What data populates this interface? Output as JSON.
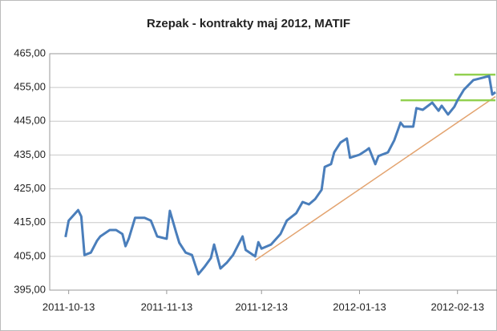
{
  "chart_data": {
    "type": "line",
    "title": "Rzepak - kontrakty maj 2012, MATIF",
    "x": [
      "2011-10-12",
      "2011-10-13",
      "2011-10-16",
      "2011-10-17",
      "2011-10-18",
      "2011-10-20",
      "2011-10-22",
      "2011-10-23",
      "2011-10-26",
      "2011-10-28",
      "2011-10-30",
      "2011-10-31",
      "2011-11-01",
      "2011-11-03",
      "2011-11-06",
      "2011-11-08",
      "2011-11-10",
      "2011-11-13",
      "2011-11-14",
      "2011-11-16",
      "2011-11-17",
      "2011-11-19",
      "2011-11-21",
      "2011-11-23",
      "2011-11-25",
      "2011-11-27",
      "2011-11-28",
      "2011-11-30",
      "2011-12-02",
      "2011-12-04",
      "2011-12-07",
      "2011-12-08",
      "2011-12-11",
      "2011-12-12",
      "2011-12-13",
      "2011-12-16",
      "2011-12-19",
      "2011-12-21",
      "2011-12-24",
      "2011-12-26",
      "2011-12-28",
      "2011-12-30",
      "2012-01-01",
      "2012-01-02",
      "2012-01-04",
      "2012-01-05",
      "2012-01-07",
      "2012-01-09",
      "2012-01-10",
      "2012-01-13",
      "2012-01-15",
      "2012-01-16",
      "2012-01-18",
      "2012-01-19",
      "2012-01-22",
      "2012-01-24",
      "2012-01-26",
      "2012-01-27",
      "2012-01-30",
      "2012-01-31",
      "2012-02-02",
      "2012-02-05",
      "2012-02-07",
      "2012-02-08",
      "2012-02-10",
      "2012-02-12",
      "2012-02-13",
      "2012-02-15",
      "2012-02-18",
      "2012-02-21",
      "2012-02-23",
      "2012-02-24",
      "2012-02-25"
    ],
    "series": [
      {
        "color": "#4a7ebb",
        "values": [
          410.7,
          415.6,
          418.7,
          416.8,
          405.4,
          406.1,
          409.7,
          410.9,
          412.8,
          412.8,
          411.6,
          408.0,
          410.2,
          416.4,
          416.4,
          415.6,
          410.9,
          410.2,
          418.5,
          412.1,
          409.0,
          406.1,
          405.4,
          399.7,
          401.9,
          404.5,
          408.5,
          401.4,
          403.1,
          405.4,
          410.9,
          406.9,
          405.0,
          409.2,
          407.3,
          408.5,
          411.6,
          415.6,
          417.8,
          421.1,
          420.4,
          422.0,
          424.7,
          431.5,
          432.3,
          435.8,
          438.7,
          439.9,
          434.2,
          435.1,
          436.3,
          437.0,
          432.3,
          434.7,
          435.8,
          439.4,
          444.6,
          443.4,
          443.4,
          448.9,
          448.4,
          450.5,
          448.1,
          449.6,
          447.0,
          449.3,
          451.2,
          454.3,
          457.2,
          457.9,
          458.4,
          452.9,
          453.6
        ]
      }
    ],
    "lines": [
      {
        "color": "#e3a36f",
        "x": [
          "2011-12-11",
          "2012-02-25"
        ],
        "values": [
          403.8,
          452.3
        ]
      },
      {
        "color": "#92d050",
        "x": [
          "2012-01-26",
          "2012-02-25"
        ],
        "values": [
          451.2,
          451.2
        ]
      },
      {
        "color": "#92d050",
        "x": [
          "2012-02-12",
          "2012-02-25"
        ],
        "values": [
          458.8,
          458.8
        ]
      }
    ],
    "xlim": [
      "2011-10-07",
      "2012-02-26"
    ],
    "xticks": [
      "2011-10-13",
      "2011-11-13",
      "2011-12-13",
      "2012-01-13",
      "2012-02-13"
    ],
    "ylim": [
      395,
      465
    ],
    "yticks": [
      {
        "value": 395,
        "label": "395,00"
      },
      {
        "value": 405,
        "label": "405,00"
      },
      {
        "value": 415,
        "label": "415,00"
      },
      {
        "value": 425,
        "label": "425,00"
      },
      {
        "value": 435,
        "label": "435,00"
      },
      {
        "value": 445,
        "label": "445,00"
      },
      {
        "value": 455,
        "label": "455,00"
      },
      {
        "value": 465,
        "label": "465,00"
      }
    ],
    "grid": true
  }
}
